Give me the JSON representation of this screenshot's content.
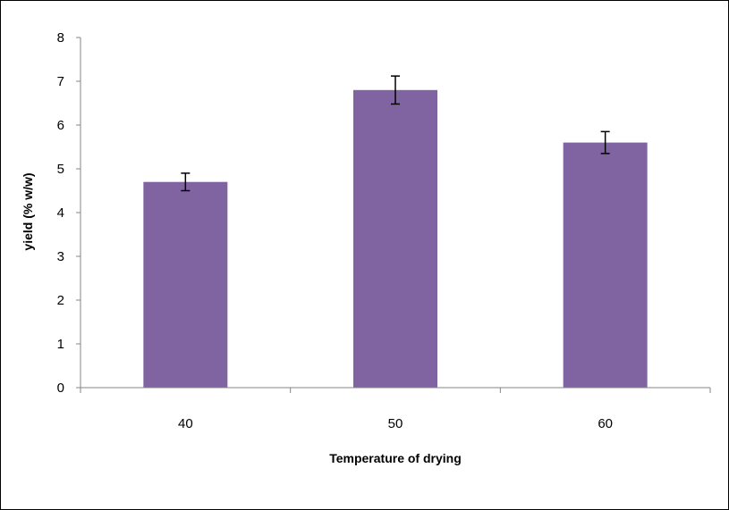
{
  "chart_data": {
    "type": "bar",
    "title": "",
    "xlabel": "Temperature of drying",
    "ylabel": "yield (% w/w)",
    "categories": [
      "40",
      "50",
      "60"
    ],
    "values": [
      4.7,
      6.8,
      5.6
    ],
    "error": [
      0.2,
      0.32,
      0.25
    ],
    "ylim": [
      0,
      8
    ],
    "yticks": [
      "0",
      "1",
      "2",
      "3",
      "4",
      "5",
      "6",
      "7",
      "8"
    ],
    "grid": false,
    "legend": "none",
    "bar_color": "#8064A2",
    "error_bar_color": "#000000",
    "axis_color": "#868686"
  }
}
